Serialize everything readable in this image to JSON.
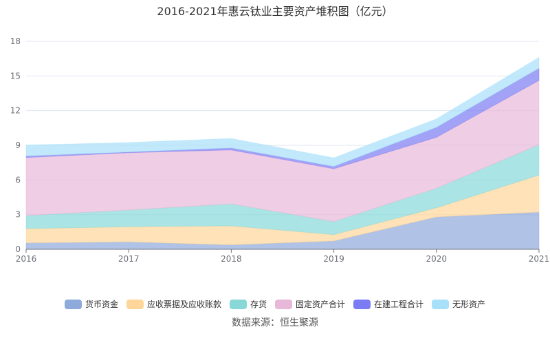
{
  "chart_data": {
    "type": "area",
    "stacked": true,
    "title": "2016-2021年惠云钛业主要资产堆积图（亿元）",
    "xlabel": "",
    "ylabel": "",
    "categories": [
      "2016",
      "2017",
      "2018",
      "2019",
      "2020",
      "2021"
    ],
    "ylim": [
      0,
      18
    ],
    "yticks": [
      "0",
      "3",
      "6",
      "9",
      "12",
      "15",
      "18"
    ],
    "grid": true,
    "legend_position": "bottom",
    "series": [
      {
        "name": "货币资金",
        "color": "#8eaadb",
        "values": [
          0.55,
          0.64,
          0.38,
          0.72,
          2.8,
          3.22
        ]
      },
      {
        "name": "应收票据及应收账款",
        "color": "#ffd699",
        "values": [
          1.24,
          1.31,
          1.65,
          0.55,
          0.79,
          3.2
        ]
      },
      {
        "name": "存货",
        "color": "#88d8d8",
        "values": [
          1.13,
          1.45,
          1.9,
          1.13,
          1.69,
          2.64
        ]
      },
      {
        "name": "固定资产合计",
        "color": "#e8b8d8",
        "values": [
          5.02,
          4.96,
          4.67,
          4.57,
          4.41,
          5.56
        ]
      },
      {
        "name": "在建工程合计",
        "color": "#7b7bf4",
        "values": [
          0.13,
          0.06,
          0.18,
          0.2,
          0.86,
          1.05
        ]
      },
      {
        "name": "无形资产",
        "color": "#a8e0fa",
        "values": [
          0.95,
          0.82,
          0.81,
          0.74,
          0.73,
          0.94
        ]
      }
    ],
    "source": "数据来源：恒生聚源"
  }
}
